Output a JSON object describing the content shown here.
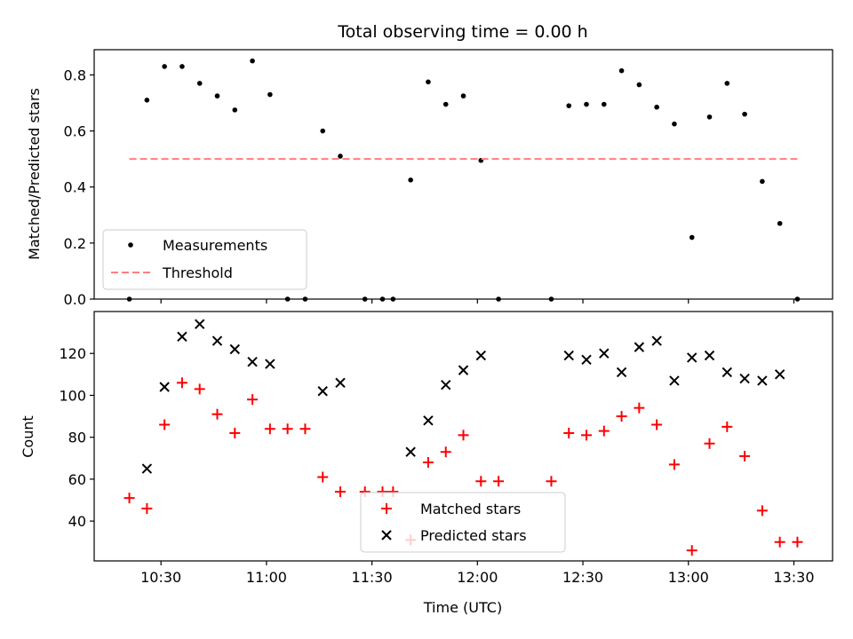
{
  "chart_data": {
    "type": "scatter",
    "title": "Total observing time = 0.00 h",
    "xlabel": "Time (UTC)",
    "x_tick_labels": [
      "10:30",
      "11:00",
      "11:30",
      "12:00",
      "12:30",
      "13:00",
      "13:30"
    ],
    "x_ticks": [
      "10:30",
      "11:00",
      "11:30",
      "12:00",
      "12:30",
      "13:00",
      "13:30"
    ],
    "xlim": [
      "10:11",
      "13:41"
    ],
    "panels": [
      {
        "ylabel": "Matched/Predicted stars",
        "ylim": [
          0,
          0.89
        ],
        "y_ticks": [
          0.0,
          0.2,
          0.4,
          0.6,
          0.8
        ],
        "y_tick_labels": [
          "0.0",
          "0.2",
          "0.4",
          "0.6",
          "0.8"
        ],
        "legend": "lower-left",
        "series": [
          {
            "name": "Measurements",
            "marker": "dot",
            "color": "#000000",
            "x": [
              "10:21",
              "10:26",
              "10:31",
              "10:36",
              "10:41",
              "10:46",
              "10:51",
              "10:56",
              "11:01",
              "11:06",
              "11:11",
              "11:16",
              "11:21",
              "11:28",
              "11:33",
              "11:36",
              "11:41",
              "11:46",
              "11:51",
              "11:56",
              "12:01",
              "12:06",
              "12:21",
              "12:26",
              "12:31",
              "12:36",
              "12:41",
              "12:46",
              "12:51",
              "12:56",
              "13:01",
              "13:06",
              "13:11",
              "13:16",
              "13:21",
              "13:26",
              "13:31"
            ],
            "y": [
              0.0,
              0.71,
              0.83,
              0.83,
              0.77,
              0.725,
              0.675,
              0.85,
              0.73,
              0.0,
              0.0,
              0.6,
              0.51,
              0.0,
              0.0,
              0.0,
              0.425,
              0.775,
              0.695,
              0.725,
              0.495,
              0.0,
              0.0,
              0.69,
              0.695,
              0.695,
              0.815,
              0.765,
              0.685,
              0.625,
              0.22,
              0.65,
              0.77,
              0.66,
              0.42,
              0.27,
              0.0
            ]
          },
          {
            "name": "Threshold",
            "marker": "dashed-line",
            "color": "#ff7f7f",
            "x": [
              "10:21",
              "13:31"
            ],
            "y": [
              0.5,
              0.5
            ]
          }
        ]
      },
      {
        "ylabel": "Count",
        "ylim": [
          21,
          140
        ],
        "y_ticks": [
          40,
          60,
          80,
          100,
          120
        ],
        "y_tick_labels": [
          "40",
          "60",
          "80",
          "100",
          "120"
        ],
        "legend": "lower-center",
        "series": [
          {
            "name": "Matched stars",
            "marker": "plus",
            "color": "#ff0000",
            "x": [
              "10:21",
              "10:26",
              "10:31",
              "10:36",
              "10:41",
              "10:46",
              "10:51",
              "10:56",
              "11:01",
              "11:06",
              "11:11",
              "11:16",
              "11:21",
              "11:28",
              "11:33",
              "11:36",
              "11:41",
              "11:46",
              "11:51",
              "11:56",
              "12:01",
              "12:06",
              "12:21",
              "12:26",
              "12:31",
              "12:36",
              "12:41",
              "12:46",
              "12:51",
              "12:56",
              "13:01",
              "13:06",
              "13:11",
              "13:16",
              "13:21",
              "13:26",
              "13:31"
            ],
            "y": [
              51,
              46,
              86,
              106,
              103,
              91,
              82,
              98,
              84,
              84,
              84,
              61,
              54,
              54,
              54,
              54,
              31,
              68,
              73,
              81,
              59,
              59,
              59,
              82,
              81,
              83,
              90,
              94,
              86,
              67,
              26,
              77,
              85,
              71,
              45,
              30,
              30
            ]
          },
          {
            "name": "Predicted stars",
            "marker": "x",
            "color": "#000000",
            "x": [
              "10:26",
              "10:31",
              "10:36",
              "10:41",
              "10:46",
              "10:51",
              "10:56",
              "11:01",
              "11:16",
              "11:21",
              "11:41",
              "11:46",
              "11:51",
              "11:56",
              "12:01",
              "12:26",
              "12:31",
              "12:36",
              "12:41",
              "12:46",
              "12:51",
              "12:56",
              "13:01",
              "13:06",
              "13:11",
              "13:16",
              "13:21",
              "13:26"
            ],
            "y": [
              65,
              104,
              128,
              134,
              126,
              122,
              116,
              115,
              102,
              106,
              73,
              88,
              105,
              112,
              119,
              119,
              117,
              120,
              111,
              123,
              126,
              107,
              118,
              119,
              111,
              108,
              107,
              110
            ]
          }
        ]
      }
    ]
  }
}
